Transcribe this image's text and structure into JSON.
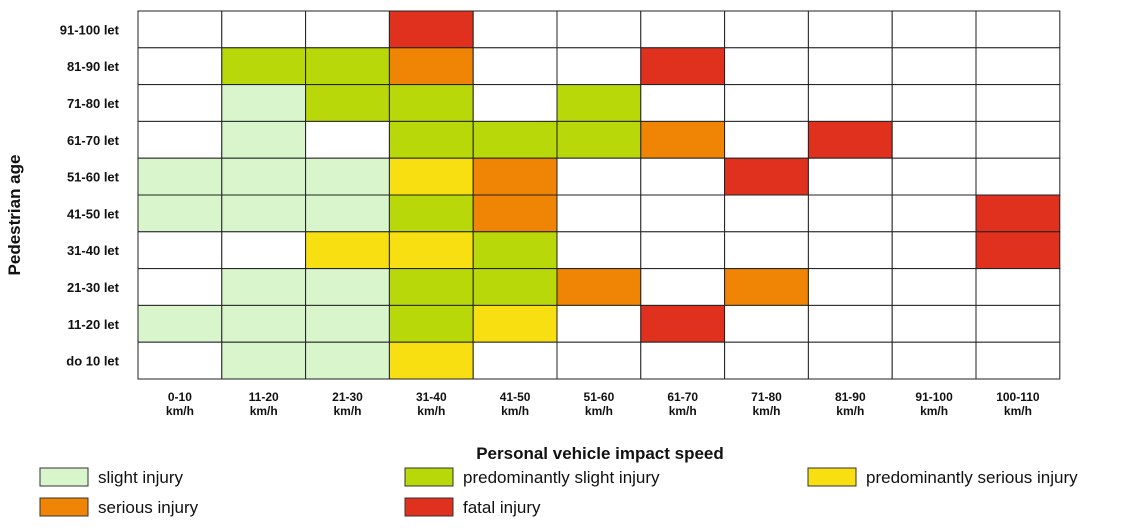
{
  "chart_data": {
    "type": "heatmap",
    "xlabel": "Personal vehicle impact speed",
    "ylabel": "Pedestrian age",
    "columns": [
      [
        "0-10",
        "km/h"
      ],
      [
        "11-20",
        "km/h"
      ],
      [
        "21-30",
        "km/h"
      ],
      [
        "31-40",
        "km/h"
      ],
      [
        "41-50",
        "km/h"
      ],
      [
        "51-60",
        "km/h"
      ],
      [
        "61-70",
        "km/h"
      ],
      [
        "71-80",
        "km/h"
      ],
      [
        "81-90",
        "km/h"
      ],
      [
        "91-100",
        "km/h"
      ],
      [
        "100-110",
        "km/h"
      ]
    ],
    "rows": [
      "91-100 let",
      "81-90 let",
      "71-80 let",
      "61-70 let",
      "51-60 let",
      "41-50 let",
      "31-40 let",
      "21-30 let",
      "11-20 let",
      "do 10 let"
    ],
    "categories": [
      {
        "key": "slight",
        "label": "slight injury",
        "color": "#d8f5cc"
      },
      {
        "key": "pred_slight",
        "label": "predominantly slight injury",
        "color": "#b8d80a"
      },
      {
        "key": "pred_serious",
        "label": "predominantly serious injury",
        "color": "#f7df12"
      },
      {
        "key": "serious",
        "label": "serious injury",
        "color": "#f08405"
      },
      {
        "key": "fatal",
        "label": "fatal injury",
        "color": "#e0301e"
      }
    ],
    "cells": [
      [
        null,
        null,
        null,
        "fatal",
        null,
        null,
        null,
        null,
        null,
        null,
        null
      ],
      [
        null,
        "pred_slight",
        "pred_slight",
        "serious",
        null,
        null,
        "fatal",
        null,
        null,
        null,
        null
      ],
      [
        null,
        "slight",
        "pred_slight",
        "pred_slight",
        null,
        "pred_slight",
        null,
        null,
        null,
        null,
        null
      ],
      [
        null,
        "slight",
        null,
        "pred_slight",
        "pred_slight",
        "pred_slight",
        "serious",
        null,
        "fatal",
        null,
        null
      ],
      [
        "slight",
        "slight",
        "slight",
        "pred_serious",
        "serious",
        null,
        null,
        "fatal",
        null,
        null,
        null
      ],
      [
        "slight",
        "slight",
        "slight",
        "pred_slight",
        "serious",
        null,
        null,
        null,
        null,
        null,
        "fatal"
      ],
      [
        null,
        null,
        "pred_serious",
        "pred_serious",
        "pred_slight",
        null,
        null,
        null,
        null,
        null,
        "fatal"
      ],
      [
        null,
        "slight",
        "slight",
        "pred_slight",
        "pred_slight",
        "serious",
        null,
        "serious",
        null,
        null,
        null
      ],
      [
        "slight",
        "slight",
        "slight",
        "pred_slight",
        "pred_serious",
        null,
        "fatal",
        null,
        null,
        null,
        null
      ],
      [
        null,
        "slight",
        "slight",
        "pred_serious",
        null,
        null,
        null,
        null,
        null,
        null,
        null
      ]
    ]
  }
}
